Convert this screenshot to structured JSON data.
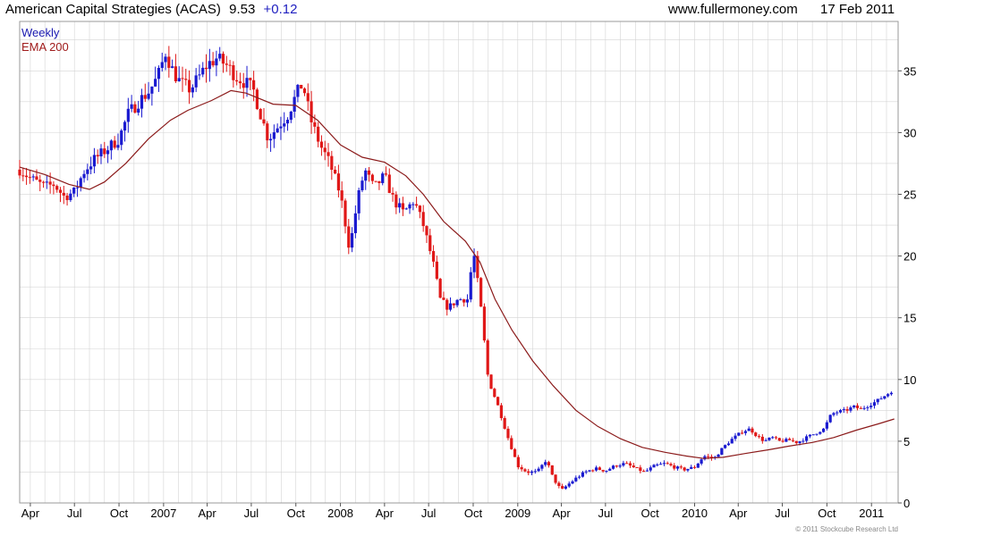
{
  "header": {
    "title": "American Capital Strategies (ACAS)",
    "last": "9.53",
    "change": "+0.12",
    "website": "www.fullermoney.com",
    "date": "17 Feb 2011"
  },
  "legend": {
    "weekly": "Weekly",
    "ema": "EMA 200"
  },
  "copyright": "© 2011 Stockcube Research Ltd",
  "colors": {
    "up": "#1a1ad0",
    "down": "#e01818",
    "ema": "#8b1a1a",
    "grid": "#d4d4d4",
    "frame": "#9a9a9a"
  },
  "chart_data": {
    "type": "candlestick",
    "title": "American Capital Strategies (ACAS) 9.53 +0.12",
    "xlabel": "",
    "ylabel": "",
    "x_range": [
      "2006-03-10",
      "2011-02-25"
    ],
    "ylim": [
      0,
      39
    ],
    "y_ticks": [
      0,
      5,
      10,
      15,
      20,
      25,
      30,
      35
    ],
    "grid": true,
    "y_axis_side": "right",
    "legend_position": "top-left",
    "x_ticks": [
      {
        "date": "2006-04-01",
        "label": "Apr"
      },
      {
        "date": "2006-07-01",
        "label": "Jul"
      },
      {
        "date": "2006-10-01",
        "label": "Oct"
      },
      {
        "date": "2007-01-01",
        "label": "2007"
      },
      {
        "date": "2007-04-01",
        "label": "Apr"
      },
      {
        "date": "2007-07-01",
        "label": "Jul"
      },
      {
        "date": "2007-10-01",
        "label": "Oct"
      },
      {
        "date": "2008-01-01",
        "label": "2008"
      },
      {
        "date": "2008-04-01",
        "label": "Apr"
      },
      {
        "date": "2008-07-01",
        "label": "Jul"
      },
      {
        "date": "2008-10-01",
        "label": "Oct"
      },
      {
        "date": "2009-01-01",
        "label": "2009"
      },
      {
        "date": "2009-04-01",
        "label": "Apr"
      },
      {
        "date": "2009-07-01",
        "label": "Jul"
      },
      {
        "date": "2009-10-01",
        "label": "Oct"
      },
      {
        "date": "2010-01-01",
        "label": "2010"
      },
      {
        "date": "2010-04-01",
        "label": "Apr"
      },
      {
        "date": "2010-07-01",
        "label": "Jul"
      },
      {
        "date": "2010-10-01",
        "label": "Oct"
      },
      {
        "date": "2011-01-01",
        "label": "2011"
      }
    ],
    "series": [
      {
        "name": "Weekly",
        "kind": "close",
        "points": [
          [
            "2006-03-10",
            27.0
          ],
          [
            "2006-04-01",
            26.3
          ],
          [
            "2006-05-01",
            25.6
          ],
          [
            "2006-05-20",
            25.8
          ],
          [
            "2006-06-10",
            24.8
          ],
          [
            "2006-07-01",
            25.2
          ],
          [
            "2006-07-20",
            26.8
          ],
          [
            "2006-08-10",
            27.8
          ],
          [
            "2006-09-01",
            28.5
          ],
          [
            "2006-10-01",
            29.5
          ],
          [
            "2006-10-20",
            31.5
          ],
          [
            "2006-11-10",
            32.5
          ],
          [
            "2006-12-01",
            33.3
          ],
          [
            "2006-12-20",
            34.5
          ],
          [
            "2007-01-05",
            36.5
          ],
          [
            "2007-01-20",
            35.0
          ],
          [
            "2007-02-05",
            34.0
          ],
          [
            "2007-02-25",
            33.5
          ],
          [
            "2007-03-15",
            34.5
          ],
          [
            "2007-04-01",
            35.5
          ],
          [
            "2007-04-20",
            36.0
          ],
          [
            "2007-05-10",
            35.5
          ],
          [
            "2007-06-01",
            34.5
          ],
          [
            "2007-06-20",
            34.0
          ],
          [
            "2007-07-05",
            33.5
          ],
          [
            "2007-07-20",
            31.5
          ],
          [
            "2007-08-05",
            29.5
          ],
          [
            "2007-08-25",
            30.5
          ],
          [
            "2007-09-15",
            31.5
          ],
          [
            "2007-10-01",
            33.0
          ],
          [
            "2007-10-15",
            34.0
          ],
          [
            "2007-11-01",
            31.0
          ],
          [
            "2007-11-20",
            29.0
          ],
          [
            "2007-12-10",
            27.5
          ],
          [
            "2008-01-01",
            25.0
          ],
          [
            "2008-01-20",
            20.5
          ],
          [
            "2008-02-05",
            24.5
          ],
          [
            "2008-02-20",
            27.0
          ],
          [
            "2008-03-10",
            25.5
          ],
          [
            "2008-04-01",
            26.5
          ],
          [
            "2008-04-20",
            24.5
          ],
          [
            "2008-05-10",
            23.5
          ],
          [
            "2008-06-01",
            24.5
          ],
          [
            "2008-06-20",
            22.5
          ],
          [
            "2008-07-10",
            19.5
          ],
          [
            "2008-07-25",
            16.5
          ],
          [
            "2008-08-10",
            15.8
          ],
          [
            "2008-09-01",
            16.5
          ],
          [
            "2008-09-20",
            16.5
          ],
          [
            "2008-10-01",
            20.5
          ],
          [
            "2008-10-15",
            16.5
          ],
          [
            "2008-11-01",
            10.0
          ],
          [
            "2008-11-20",
            8.0
          ],
          [
            "2008-12-10",
            5.5
          ],
          [
            "2009-01-01",
            3.0
          ],
          [
            "2009-01-20",
            2.5
          ],
          [
            "2009-02-10",
            2.5
          ],
          [
            "2009-03-01",
            3.5
          ],
          [
            "2009-03-15",
            2.0
          ],
          [
            "2009-04-01",
            1.0
          ],
          [
            "2009-04-15",
            1.5
          ],
          [
            "2009-05-01",
            2.0
          ],
          [
            "2009-05-20",
            2.5
          ],
          [
            "2009-06-10",
            2.8
          ],
          [
            "2009-07-01",
            2.6
          ],
          [
            "2009-07-20",
            3.0
          ],
          [
            "2009-08-10",
            3.2
          ],
          [
            "2009-09-01",
            2.8
          ],
          [
            "2009-09-20",
            2.5
          ],
          [
            "2009-10-10",
            3.0
          ],
          [
            "2009-11-01",
            3.2
          ],
          [
            "2009-11-20",
            2.9
          ],
          [
            "2009-12-10",
            2.7
          ],
          [
            "2010-01-01",
            2.9
          ],
          [
            "2010-01-20",
            3.8
          ],
          [
            "2010-02-10",
            3.6
          ],
          [
            "2010-03-01",
            4.5
          ],
          [
            "2010-03-20",
            5.2
          ],
          [
            "2010-04-10",
            5.8
          ],
          [
            "2010-04-25",
            6.0
          ],
          [
            "2010-05-10",
            5.4
          ],
          [
            "2010-05-25",
            5.0
          ],
          [
            "2010-06-10",
            5.3
          ],
          [
            "2010-06-25",
            5.0
          ],
          [
            "2010-07-15",
            5.1
          ],
          [
            "2010-08-01",
            4.9
          ],
          [
            "2010-08-20",
            5.3
          ],
          [
            "2010-09-05",
            5.6
          ],
          [
            "2010-09-25",
            6.0
          ],
          [
            "2010-10-10",
            7.2
          ],
          [
            "2010-10-25",
            7.4
          ],
          [
            "2010-11-10",
            7.5
          ],
          [
            "2010-11-25",
            7.8
          ],
          [
            "2010-12-10",
            7.6
          ],
          [
            "2010-12-25",
            7.9
          ],
          [
            "2011-01-10",
            8.2
          ],
          [
            "2011-01-25",
            8.6
          ],
          [
            "2011-02-10",
            9.0
          ],
          [
            "2011-02-17",
            9.53
          ]
        ]
      },
      {
        "name": "EMA 200",
        "kind": "line",
        "points": [
          [
            "2006-03-10",
            27.2
          ],
          [
            "2006-05-01",
            26.6
          ],
          [
            "2006-06-20",
            25.8
          ],
          [
            "2006-08-01",
            25.4
          ],
          [
            "2006-09-01",
            26.0
          ],
          [
            "2006-10-15",
            27.5
          ],
          [
            "2006-12-01",
            29.5
          ],
          [
            "2007-01-15",
            31.0
          ],
          [
            "2007-02-20",
            31.8
          ],
          [
            "2007-04-10",
            32.6
          ],
          [
            "2007-05-20",
            33.4
          ],
          [
            "2007-06-20",
            33.2
          ],
          [
            "2007-08-15",
            32.3
          ],
          [
            "2007-10-01",
            32.2
          ],
          [
            "2007-11-15",
            31.0
          ],
          [
            "2008-01-01",
            29.0
          ],
          [
            "2008-02-15",
            28.0
          ],
          [
            "2008-04-01",
            27.6
          ],
          [
            "2008-05-15",
            26.5
          ],
          [
            "2008-06-20",
            25.0
          ],
          [
            "2008-08-01",
            22.8
          ],
          [
            "2008-09-15",
            21.2
          ],
          [
            "2008-10-15",
            19.5
          ],
          [
            "2008-11-15",
            16.5
          ],
          [
            "2008-12-20",
            14.0
          ],
          [
            "2009-02-01",
            11.5
          ],
          [
            "2009-03-15",
            9.5
          ],
          [
            "2009-05-01",
            7.5
          ],
          [
            "2009-06-15",
            6.2
          ],
          [
            "2009-08-01",
            5.2
          ],
          [
            "2009-09-15",
            4.5
          ],
          [
            "2009-11-01",
            4.1
          ],
          [
            "2009-12-15",
            3.8
          ],
          [
            "2010-01-20",
            3.6
          ],
          [
            "2010-03-01",
            3.7
          ],
          [
            "2010-04-15",
            4.0
          ],
          [
            "2010-06-01",
            4.3
          ],
          [
            "2010-07-15",
            4.6
          ],
          [
            "2010-09-01",
            4.9
          ],
          [
            "2010-10-15",
            5.3
          ],
          [
            "2010-12-01",
            5.9
          ],
          [
            "2011-01-15",
            6.4
          ],
          [
            "2011-02-17",
            6.8
          ]
        ]
      }
    ]
  }
}
